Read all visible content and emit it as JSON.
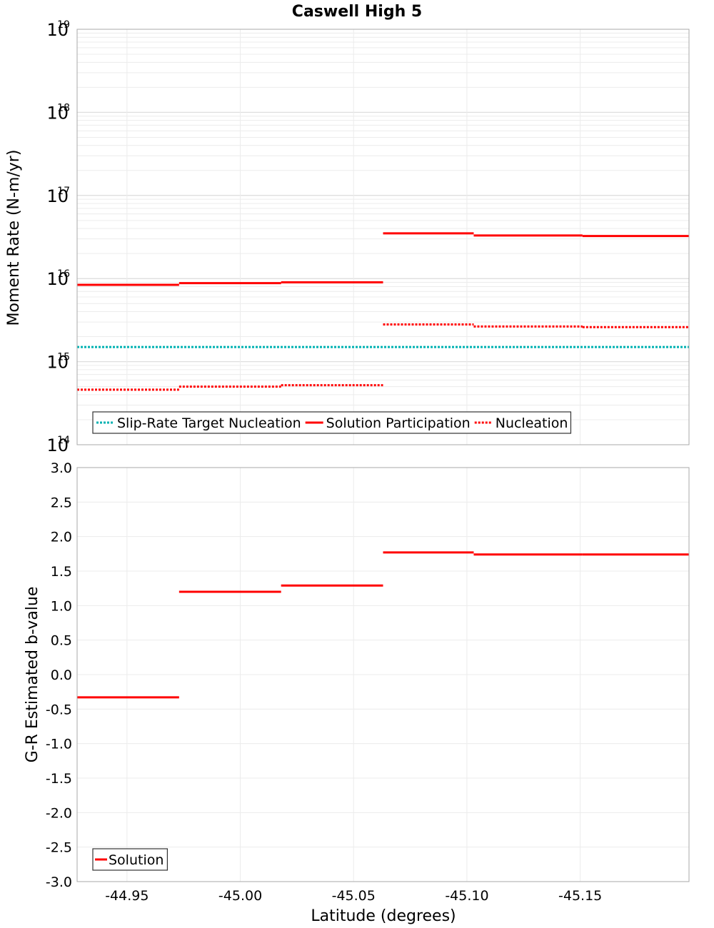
{
  "chart_data": [
    {
      "type": "line",
      "title": "Caswell High 5",
      "ylabel": "Moment Rate (N-m/yr)",
      "xlabel": "Latitude (degrees)",
      "x_reversed": true,
      "xlim": [
        -44.928,
        -45.198
      ],
      "ylim_log10": [
        14,
        19
      ],
      "yscale": "log",
      "y_ticks": [
        {
          "base": "10",
          "exp": "19",
          "log": 19
        },
        {
          "base": "10",
          "exp": "18",
          "log": 18
        },
        {
          "base": "10",
          "exp": "17",
          "log": 17
        },
        {
          "base": "10",
          "exp": "16",
          "log": 16
        },
        {
          "base": "10",
          "exp": "15",
          "log": 15
        },
        {
          "base": "10",
          "exp": "14",
          "log": 14
        }
      ],
      "grid": true,
      "legend_position": "bottom-left",
      "series": [
        {
          "name": "Slip-Rate Target Nucleation",
          "color": "#00b2b2",
          "style": "dotted",
          "segments": [
            {
              "x_start": -44.928,
              "x_end": -45.198,
              "value": 1500000000000000.0
            }
          ]
        },
        {
          "name": "Solution Participation",
          "color": "#ff0000",
          "style": "solid",
          "segments": [
            {
              "x_start": -44.928,
              "x_end": -44.973,
              "value": 8400000000000000.0
            },
            {
              "x_start": -44.973,
              "x_end": -45.018,
              "value": 8800000000000000.0
            },
            {
              "x_start": -45.018,
              "x_end": -45.063,
              "value": 9000000000000000.0
            },
            {
              "x_start": -45.063,
              "x_end": -45.103,
              "value": 3.5e+16
            },
            {
              "x_start": -45.103,
              "x_end": -45.151,
              "value": 3.3e+16
            },
            {
              "x_start": -45.151,
              "x_end": -45.198,
              "value": 3.25e+16
            }
          ]
        },
        {
          "name": "Nucleation",
          "color": "#ff0000",
          "style": "dotted",
          "segments": [
            {
              "x_start": -44.928,
              "x_end": -44.973,
              "value": 460000000000000.0
            },
            {
              "x_start": -44.973,
              "x_end": -45.018,
              "value": 500000000000000.0
            },
            {
              "x_start": -45.018,
              "x_end": -45.063,
              "value": 520000000000000.0
            },
            {
              "x_start": -45.063,
              "x_end": -45.103,
              "value": 2800000000000000.0
            },
            {
              "x_start": -45.103,
              "x_end": -45.151,
              "value": 2650000000000000.0
            },
            {
              "x_start": -45.151,
              "x_end": -45.198,
              "value": 2600000000000000.0
            }
          ]
        }
      ]
    },
    {
      "type": "line",
      "ylabel": "G-R Estimated b-value",
      "xlabel": "Latitude (degrees)",
      "x_reversed": true,
      "xlim": [
        -44.928,
        -45.198
      ],
      "ylim": [
        -3.0,
        3.0
      ],
      "y_ticks": [
        "3.0",
        "2.5",
        "2.0",
        "1.5",
        "1.0",
        "0.5",
        "0.0",
        "-0.5",
        "-1.0",
        "-1.5",
        "-2.0",
        "-2.5",
        "-3.0"
      ],
      "x_ticks": [
        "-44.95",
        "-45.00",
        "-45.05",
        "-45.10",
        "-45.15"
      ],
      "grid": true,
      "legend_position": "bottom-left",
      "series": [
        {
          "name": "Solution",
          "color": "#ff0000",
          "style": "solid",
          "segments": [
            {
              "x_start": -44.928,
              "x_end": -44.973,
              "value": -0.33
            },
            {
              "x_start": -44.973,
              "x_end": -45.018,
              "value": 1.2
            },
            {
              "x_start": -45.018,
              "x_end": -45.063,
              "value": 1.29
            },
            {
              "x_start": -45.063,
              "x_end": -45.103,
              "value": 1.77
            },
            {
              "x_start": -45.103,
              "x_end": -45.151,
              "value": 1.74
            },
            {
              "x_start": -45.151,
              "x_end": -45.198,
              "value": 1.74
            }
          ]
        }
      ]
    }
  ]
}
